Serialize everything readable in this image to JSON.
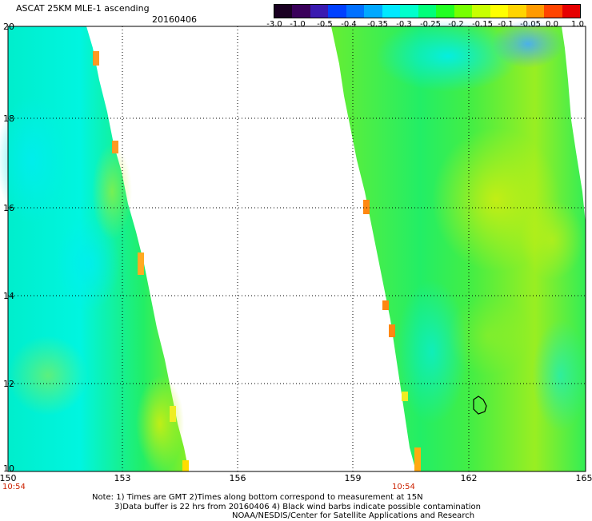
{
  "header": {
    "title": "ASCAT 25KM MLE-1 ascending",
    "date": "20160406"
  },
  "colorbar": {
    "labels": [
      "-3.0",
      "-1.0",
      "-0.5",
      "-0.4",
      "-0.35",
      "-0.3",
      "-0.25",
      "-0.2",
      "-0.15",
      "-0.1",
      "-0.05",
      "0.0",
      "1.0"
    ],
    "colors": [
      "#1a0022",
      "#3a005a",
      "#3a1ab0",
      "#0040ff",
      "#0070ff",
      "#00a8ff",
      "#00e8ff",
      "#00ffcc",
      "#00ff7a",
      "#22ff22",
      "#77ff00",
      "#c8ff00",
      "#ffff00",
      "#ffd400",
      "#ff9a00",
      "#ff4400",
      "#e60000"
    ]
  },
  "axes": {
    "x_ticks": [
      "150",
      "153",
      "156",
      "159",
      "162",
      "165"
    ],
    "y_ticks": [
      "20",
      "18",
      "16",
      "14",
      "12",
      "10"
    ],
    "time_labels": [
      "10:54",
      "10:54"
    ]
  },
  "notes": {
    "line1": "Note: 1) Times are GMT 2)Times along bottom correspond to measurement at 15N",
    "line2": "3)Data buffer is 22 hrs from 20160406 4) Black wind barbs indicate possible contamination",
    "credit": "NOAA/NESDIS/Center for Satellite Applications and Research"
  }
}
